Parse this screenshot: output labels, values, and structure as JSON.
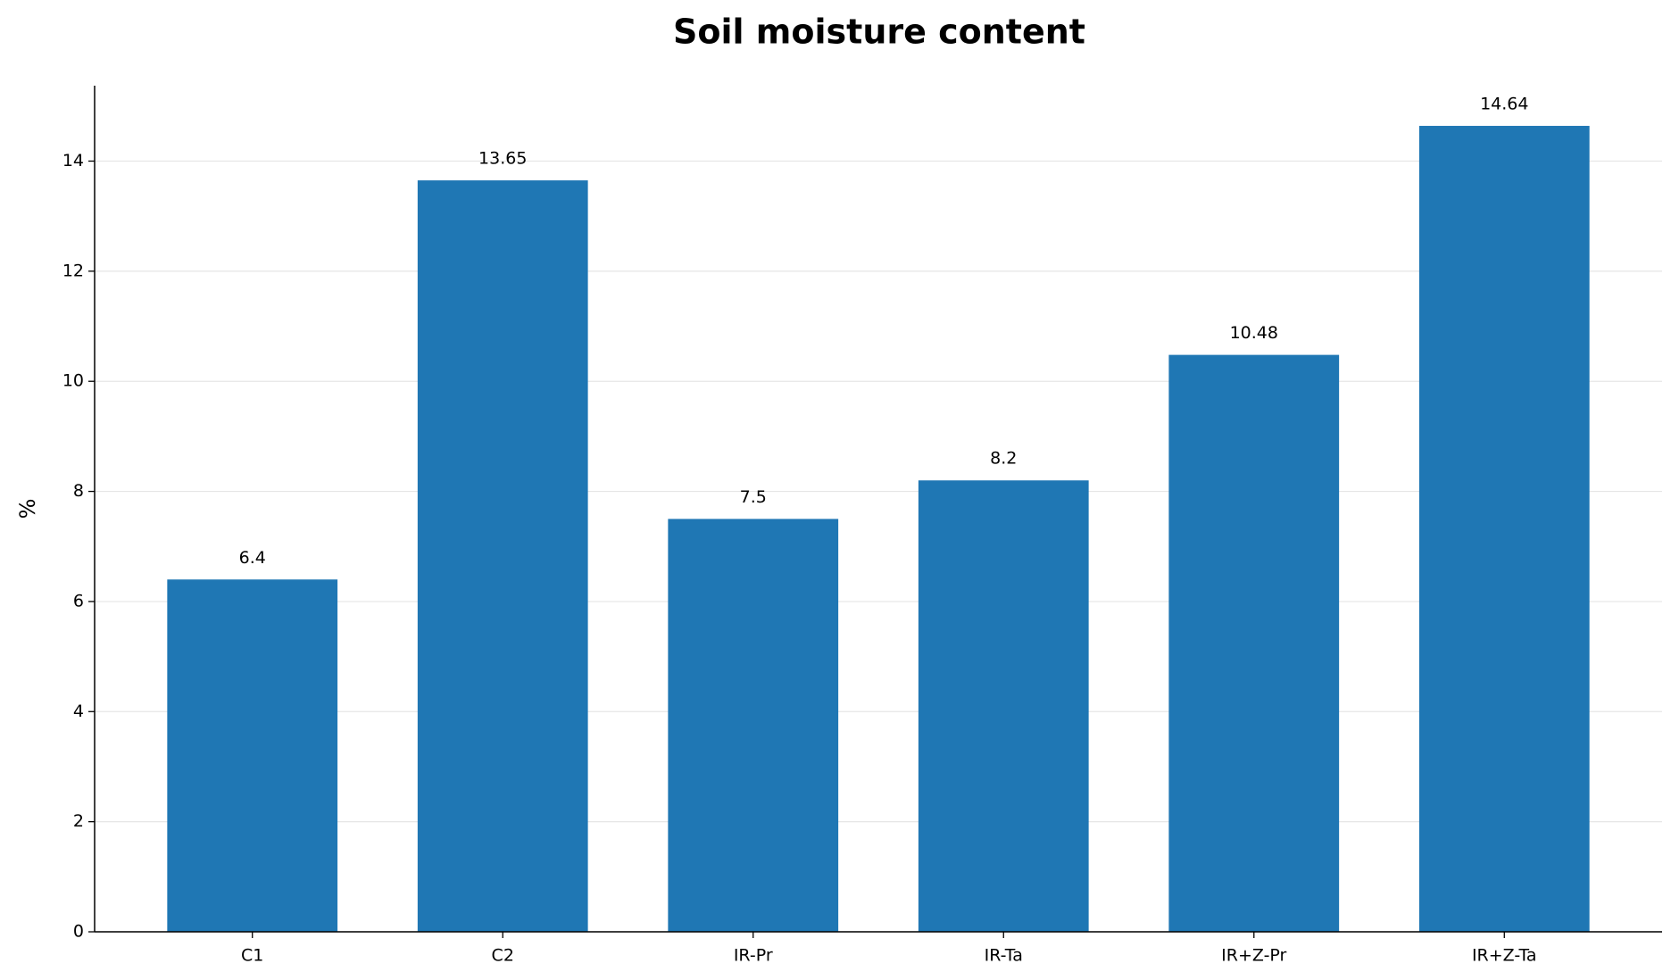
{
  "chart_data": {
    "type": "bar",
    "title": "Soil moisture content",
    "y_label": "%",
    "categories": [
      "C1",
      "C2",
      "IR-Pr",
      "IR-Ta",
      "IR+Z-Pr",
      "IR+Z-Ta"
    ],
    "values": [
      6.4,
      13.65,
      7.5,
      8.2,
      10.48,
      14.64
    ],
    "color": "#1f77b4",
    "ylim": [
      0,
      15.37
    ],
    "yticks": [
      0,
      2,
      4,
      6,
      8,
      10,
      12,
      14
    ],
    "grid": true
  }
}
